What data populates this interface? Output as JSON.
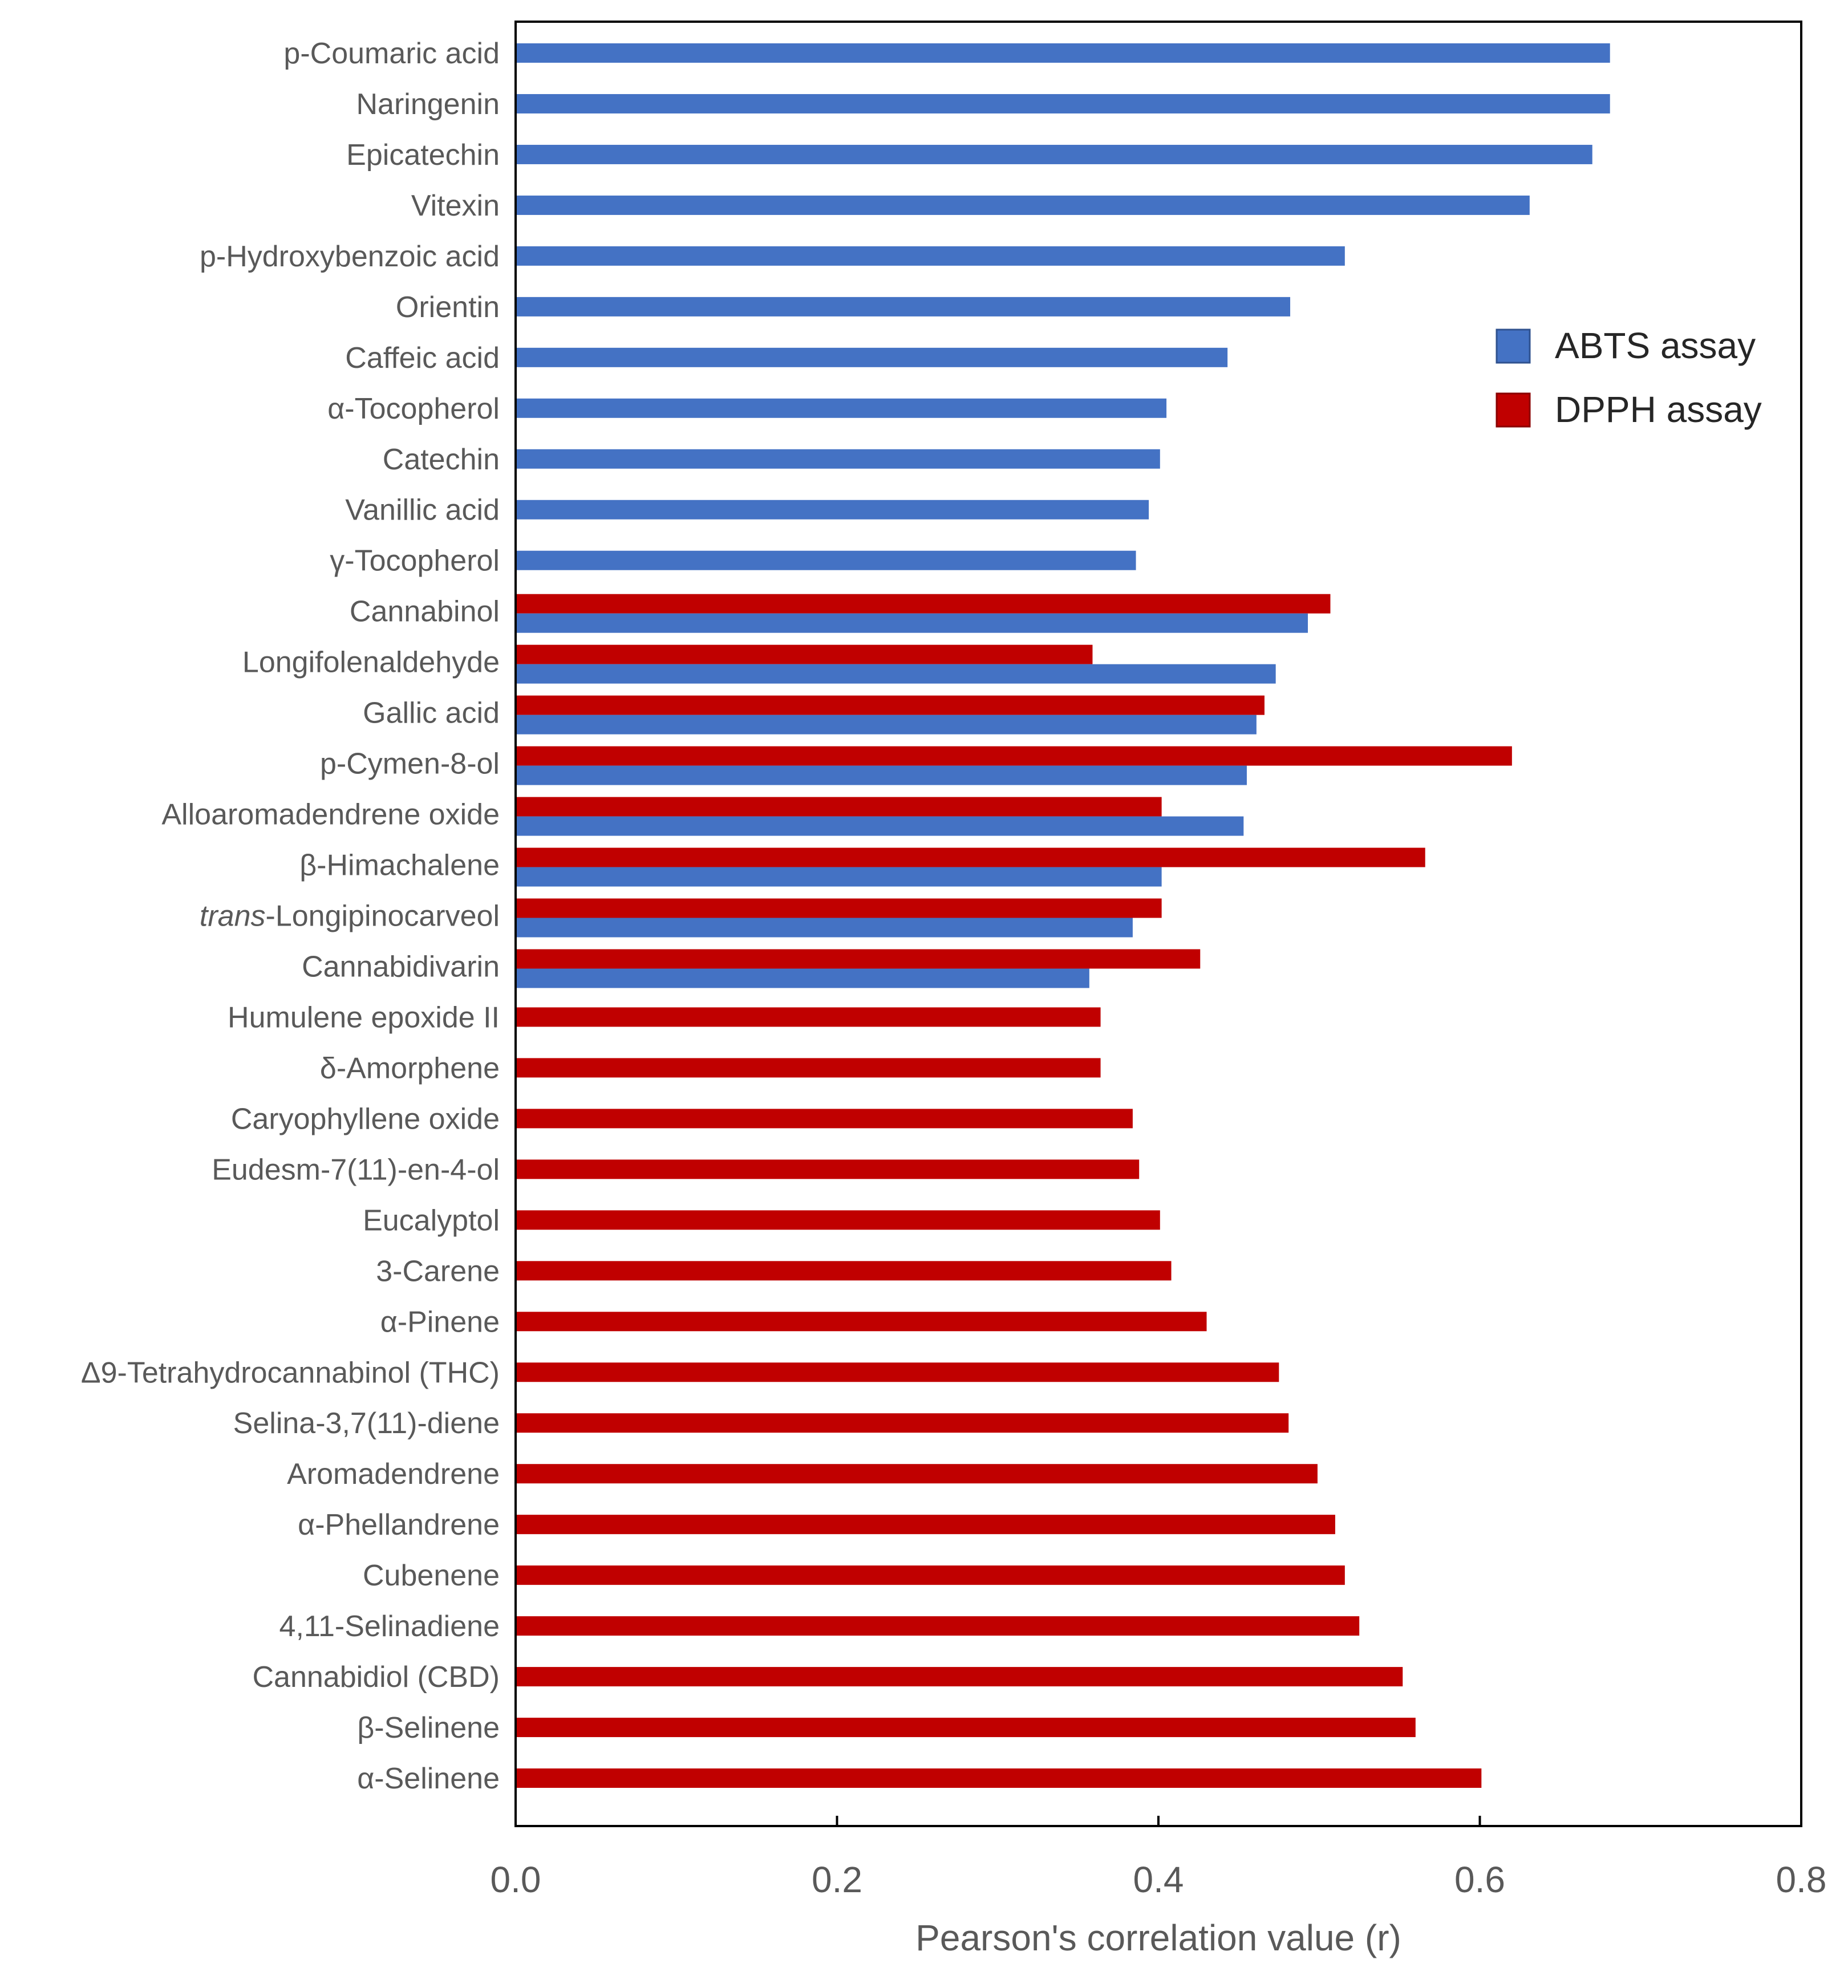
{
  "chart_data": {
    "type": "bar",
    "orientation": "horizontal",
    "title": "",
    "xlabel": "Pearson's correlation value (r)",
    "ylabel": "",
    "xlim": [
      0.0,
      0.8
    ],
    "xticks": [
      "0.0",
      "0.2",
      "0.4",
      "0.6",
      "0.8"
    ],
    "grid": false,
    "legend_position": "top-right",
    "series": [
      {
        "name": "ABTS assay",
        "color": "#4472C4"
      },
      {
        "name": "DPPH assay",
        "color": "#C00000"
      }
    ],
    "categories": [
      {
        "label": "p-Coumaric acid",
        "abts": 0.681,
        "dpph": null
      },
      {
        "label": "Naringenin",
        "abts": 0.681,
        "dpph": null
      },
      {
        "label": "Epicatechin",
        "abts": 0.67,
        "dpph": null
      },
      {
        "label": "Vitexin",
        "abts": 0.631,
        "dpph": null
      },
      {
        "label": "p-Hydroxybenzoic acid",
        "abts": 0.516,
        "dpph": null
      },
      {
        "label": "Orientin",
        "abts": 0.482,
        "dpph": null
      },
      {
        "label": "Caffeic acid",
        "abts": 0.443,
        "dpph": null
      },
      {
        "label": "α-Tocopherol",
        "abts": 0.405,
        "dpph": null
      },
      {
        "label": "Catechin",
        "abts": 0.401,
        "dpph": null
      },
      {
        "label": "Vanillic acid",
        "abts": 0.394,
        "dpph": null
      },
      {
        "label": "γ-Tocopherol",
        "abts": 0.386,
        "dpph": null
      },
      {
        "label": "Cannabinol",
        "abts": 0.493,
        "dpph": 0.507
      },
      {
        "label": "Longifolenaldehyde",
        "abts": 0.473,
        "dpph": 0.359
      },
      {
        "label": "Gallic acid",
        "abts": 0.461,
        "dpph": 0.466
      },
      {
        "label": "p-Cymen-8-ol",
        "abts": 0.455,
        "dpph": 0.62
      },
      {
        "label": "Alloaromadendrene  oxide",
        "abts": 0.453,
        "dpph": 0.402
      },
      {
        "label": "β-Himachalene",
        "abts": 0.402,
        "dpph": 0.566
      },
      {
        "label": "trans-Longipinocarveol",
        "label_italic": "trans",
        "label_rest": "-Longipinocarveol",
        "abts": 0.384,
        "dpph": 0.402
      },
      {
        "label": "Cannabidivarin",
        "abts": 0.357,
        "dpph": 0.426
      },
      {
        "label": "Humulene  epoxide II",
        "abts": null,
        "dpph": 0.364
      },
      {
        "label": "δ-Amorphene",
        "abts": null,
        "dpph": 0.364
      },
      {
        "label": "Caryophyllene oxide",
        "abts": null,
        "dpph": 0.384
      },
      {
        "label": "Eudesm-7(11)-en-4-ol",
        "abts": null,
        "dpph": 0.388
      },
      {
        "label": "Eucalyptol",
        "abts": null,
        "dpph": 0.401
      },
      {
        "label": "3-Carene",
        "abts": null,
        "dpph": 0.408
      },
      {
        "label": "α-Pinene",
        "abts": null,
        "dpph": 0.43
      },
      {
        "label": "Δ9-Tetrahydrocannabinol (THC)",
        "abts": null,
        "dpph": 0.475
      },
      {
        "label": "Selina-3,7(11)-diene",
        "abts": null,
        "dpph": 0.481
      },
      {
        "label": "Aromadendrene",
        "abts": null,
        "dpph": 0.499
      },
      {
        "label": "α-Phellandrene",
        "abts": null,
        "dpph": 0.51
      },
      {
        "label": "Cubenene",
        "abts": null,
        "dpph": 0.516
      },
      {
        "label": "4,11-Selinadiene",
        "abts": null,
        "dpph": 0.525
      },
      {
        "label": "Cannabidiol (CBD)",
        "abts": null,
        "dpph": 0.552
      },
      {
        "label": "β-Selinene",
        "abts": null,
        "dpph": 0.56
      },
      {
        "label": "α-Selinene",
        "abts": null,
        "dpph": 0.601
      }
    ]
  }
}
